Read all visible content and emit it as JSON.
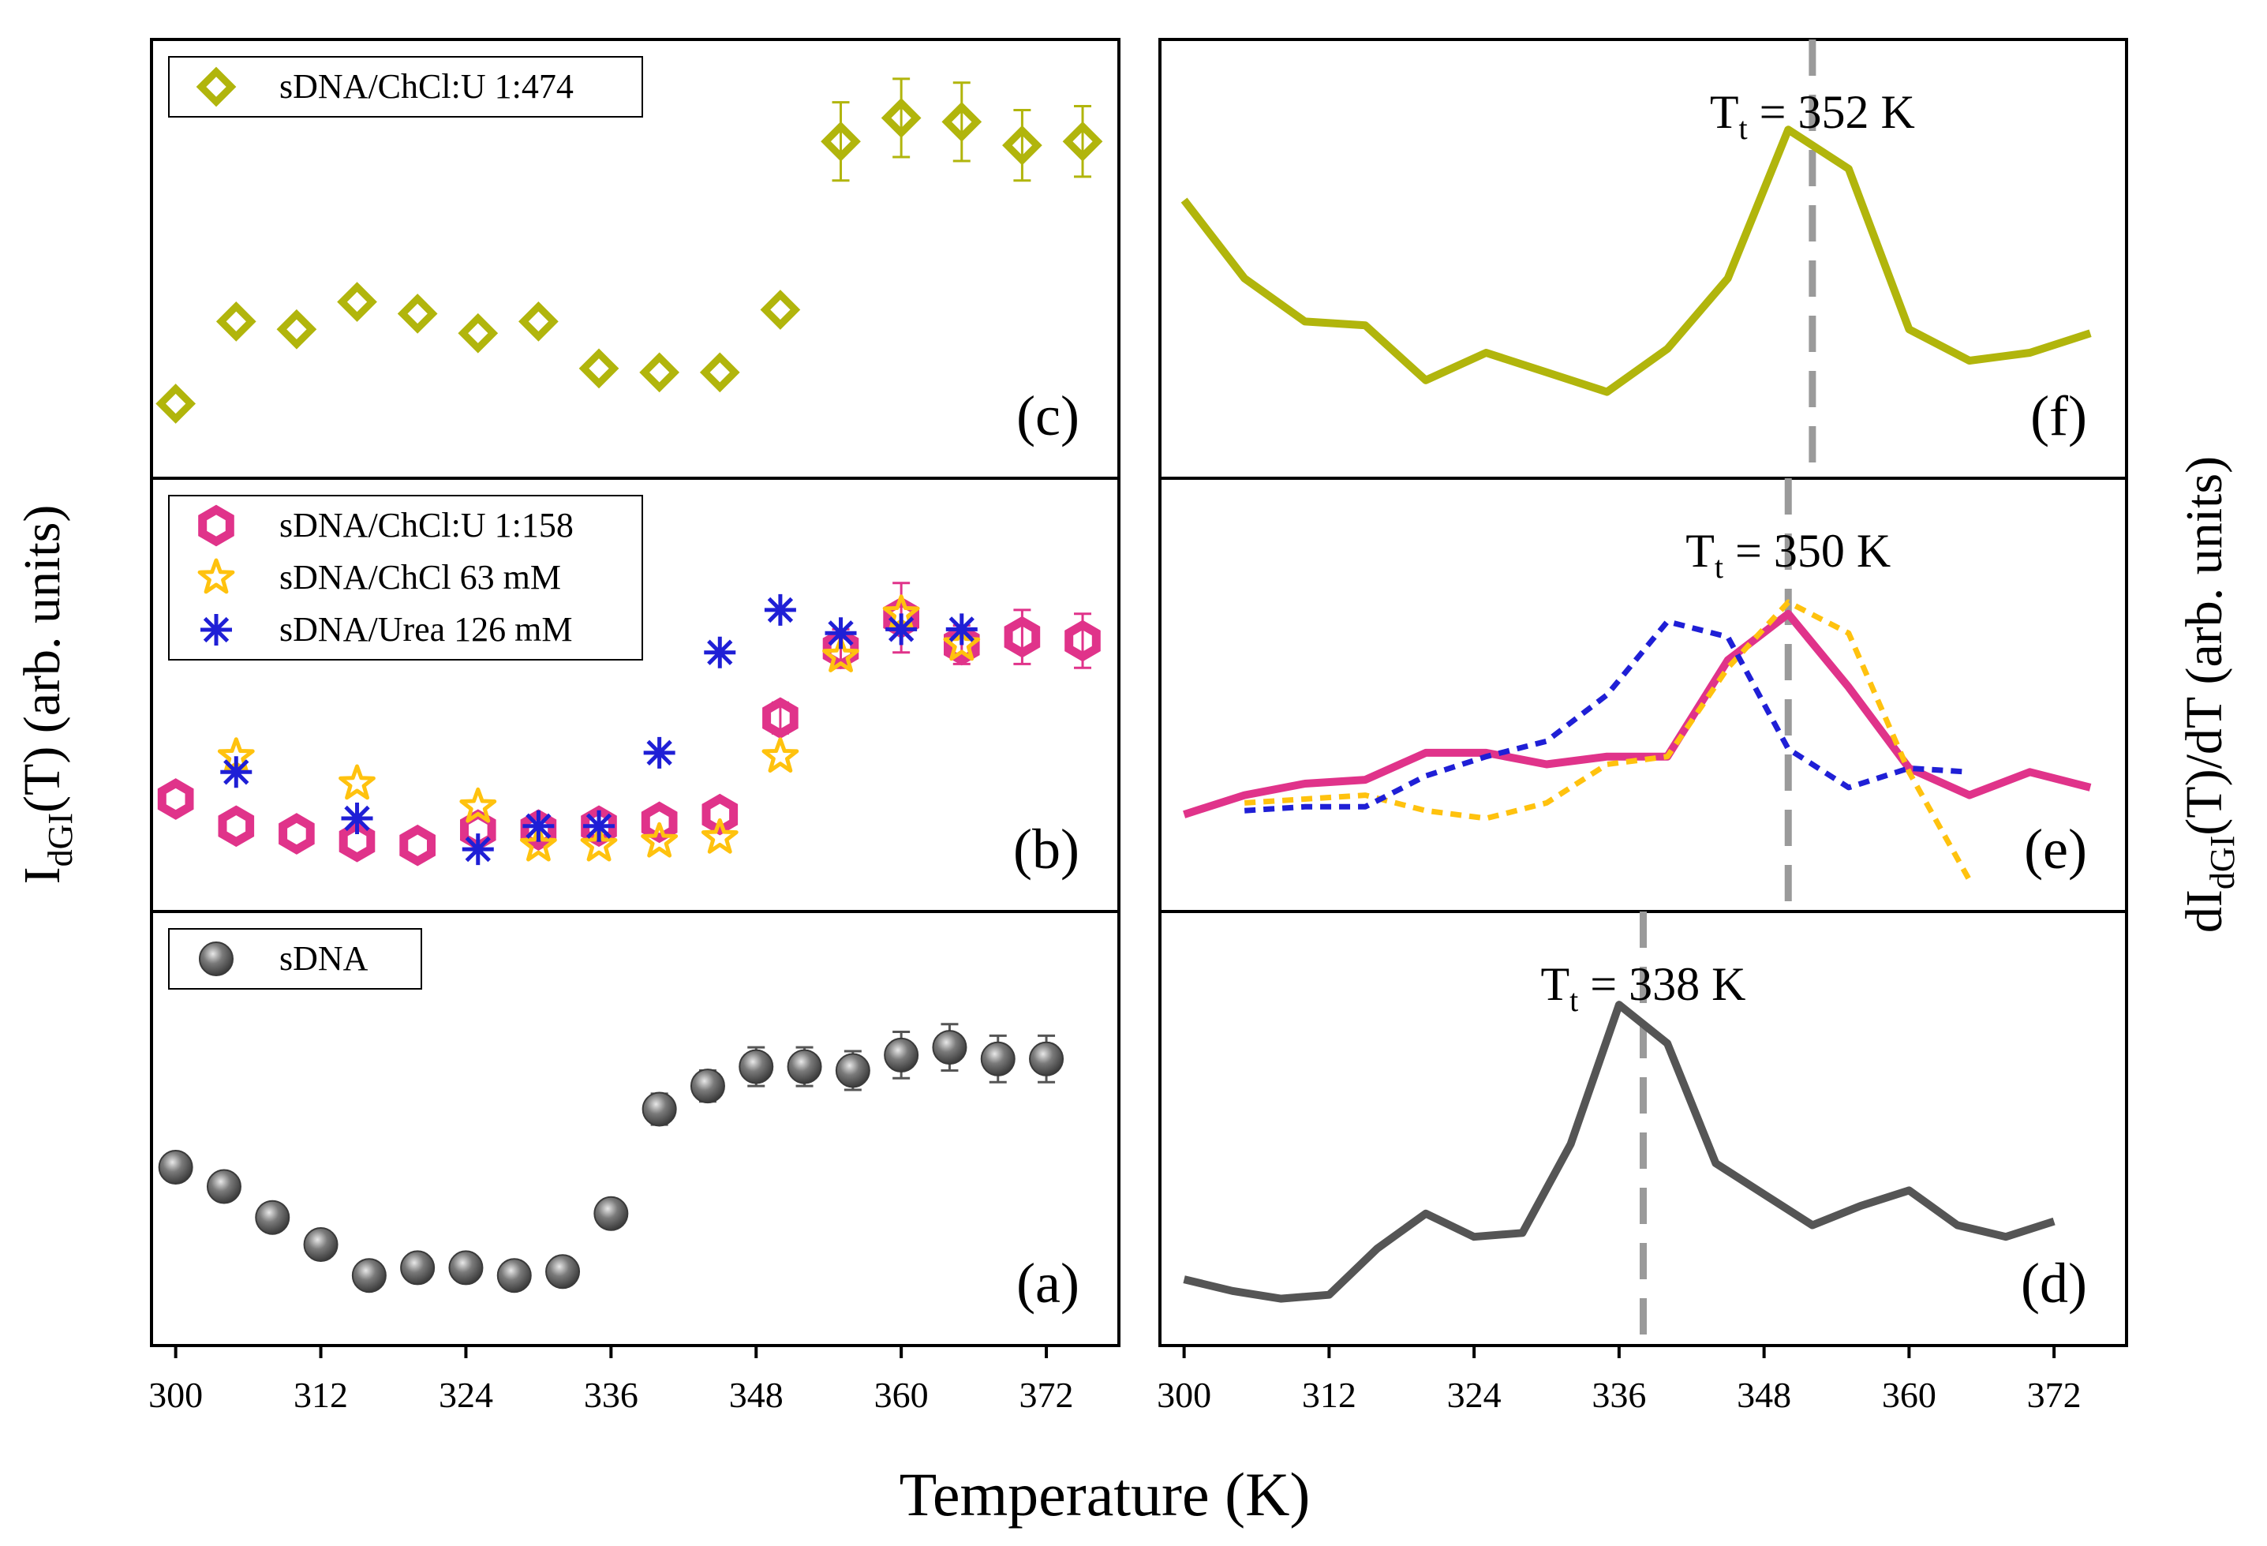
{
  "figure": {
    "x_axis_label": "Temperature (K)",
    "y_left_label": "I",
    "y_left_sub": "dGI",
    "y_left_rest": "(T) (arb. units)",
    "y_right_label": "dI",
    "y_right_sub": "dGI",
    "y_right_rest": "(T)/dT (arb. units)",
    "x_ticks": [
      300,
      312,
      324,
      336,
      348,
      360,
      372
    ],
    "xlim": [
      298,
      378
    ]
  },
  "chart_data": [
    {
      "panel": "(c)",
      "type": "scatter",
      "ylim": [
        0,
        1
      ],
      "legend": [
        {
          "name": "sDNA/ChCl:U 1:474",
          "marker": "diamond",
          "color": "#b1b50c"
        }
      ],
      "series": [
        {
          "name": "sDNA/ChCl:U 1:474",
          "marker": "diamond",
          "color": "#b1b50c",
          "x": [
            300,
            305,
            310,
            315,
            320,
            325,
            330,
            335,
            340,
            345,
            350,
            355,
            360,
            365,
            370,
            375
          ],
          "y": [
            0.13,
            0.34,
            0.32,
            0.39,
            0.36,
            0.31,
            0.34,
            0.22,
            0.21,
            0.21,
            0.37,
            0.8,
            0.86,
            0.85,
            0.79,
            0.8
          ],
          "err": [
            0,
            0,
            0,
            0,
            0,
            0,
            0,
            0,
            0,
            0,
            0,
            0.1,
            0.1,
            0.1,
            0.09,
            0.09
          ]
        }
      ]
    },
    {
      "panel": "(b)",
      "type": "scatter",
      "ylim": [
        0,
        1
      ],
      "legend": [
        {
          "name": "sDNA/ChCl:U 1:158",
          "marker": "hexagon",
          "color": "#e0338a"
        },
        {
          "name": "sDNA/ChCl 63 mM",
          "marker": "star",
          "color": "#ffc20e"
        },
        {
          "name": "sDNA/Urea 126 mM",
          "marker": "asterisk",
          "color": "#1f1fd6"
        }
      ],
      "series": [
        {
          "name": "sDNA/ChCl:U 1:158",
          "marker": "hexagon",
          "color": "#e0338a",
          "x": [
            300,
            305,
            310,
            315,
            320,
            325,
            330,
            335,
            340,
            345,
            350,
            355,
            360,
            365,
            370,
            375
          ],
          "y": [
            0.23,
            0.16,
            0.14,
            0.12,
            0.11,
            0.15,
            0.15,
            0.16,
            0.17,
            0.19,
            0.44,
            0.62,
            0.7,
            0.63,
            0.65,
            0.64
          ],
          "err": [
            0,
            0,
            0,
            0,
            0,
            0,
            0,
            0,
            0,
            0,
            0.04,
            0.05,
            0.09,
            0.05,
            0.07,
            0.07
          ]
        },
        {
          "name": "sDNA/ChCl 63 mM",
          "marker": "star",
          "color": "#ffc20e",
          "x": [
            305,
            315,
            325,
            330,
            335,
            340,
            345,
            350,
            355,
            360,
            365
          ],
          "y": [
            0.34,
            0.27,
            0.21,
            0.11,
            0.11,
            0.12,
            0.13,
            0.34,
            0.6,
            0.71,
            0.63
          ]
        },
        {
          "name": "sDNA/Urea 126 mM",
          "marker": "asterisk",
          "color": "#1f1fd6",
          "x": [
            305,
            315,
            325,
            330,
            335,
            340,
            345,
            350,
            355,
            360,
            365
          ],
          "y": [
            0.3,
            0.18,
            0.1,
            0.16,
            0.16,
            0.35,
            0.61,
            0.72,
            0.66,
            0.67,
            0.67
          ]
        }
      ]
    },
    {
      "panel": "(a)",
      "type": "scatter",
      "ylim": [
        0,
        1
      ],
      "legend": [
        {
          "name": "sDNA",
          "marker": "sphere",
          "color": "#555555"
        }
      ],
      "series": [
        {
          "name": "sDNA",
          "marker": "sphere",
          "color": "#555555",
          "x": [
            300,
            304,
            308,
            312,
            316,
            320,
            324,
            328,
            332,
            336,
            340,
            344,
            348,
            352,
            356,
            360,
            364,
            368,
            372
          ],
          "y": [
            0.4,
            0.35,
            0.27,
            0.2,
            0.12,
            0.14,
            0.14,
            0.12,
            0.13,
            0.28,
            0.55,
            0.61,
            0.66,
            0.66,
            0.65,
            0.69,
            0.71,
            0.68,
            0.68
          ],
          "err": [
            0,
            0,
            0,
            0,
            0,
            0,
            0,
            0,
            0,
            0,
            0.04,
            0.04,
            0.05,
            0.05,
            0.05,
            0.06,
            0.06,
            0.06,
            0.06
          ]
        }
      ]
    },
    {
      "panel": "(f)",
      "type": "line",
      "ylim": [
        0,
        1
      ],
      "annotation": {
        "text": "T",
        "sub": "t",
        "rest": " = 352 K",
        "x": 352
      },
      "series": [
        {
          "name": "sDNA/ChCl:U 1:474",
          "color": "#b1b50c",
          "dash": "none",
          "x": [
            300,
            305,
            310,
            315,
            320,
            325,
            330,
            335,
            340,
            345,
            350,
            355,
            360,
            365,
            370,
            375
          ],
          "y": [
            0.65,
            0.45,
            0.34,
            0.33,
            0.19,
            0.26,
            0.21,
            0.16,
            0.27,
            0.45,
            0.83,
            0.73,
            0.32,
            0.24,
            0.26,
            0.31
          ]
        }
      ]
    },
    {
      "panel": "(e)",
      "type": "line",
      "ylim": [
        0,
        1
      ],
      "annotation": {
        "text": "T",
        "sub": "t",
        "rest": " = 350 K",
        "x": 350
      },
      "series": [
        {
          "name": "sDNA/ChCl:U 1:158",
          "color": "#e0338a",
          "dash": "none",
          "x": [
            300,
            305,
            310,
            315,
            320,
            325,
            330,
            335,
            340,
            345,
            350,
            355,
            360,
            365,
            370,
            375
          ],
          "y": [
            0.19,
            0.24,
            0.27,
            0.28,
            0.35,
            0.35,
            0.32,
            0.34,
            0.34,
            0.59,
            0.71,
            0.52,
            0.31,
            0.24,
            0.3,
            0.26
          ]
        },
        {
          "name": "sDNA/ChCl 63 mM",
          "color": "#ffc20e",
          "dash": "14,10",
          "x": [
            305,
            310,
            315,
            320,
            325,
            330,
            335,
            340,
            345,
            350,
            355,
            360,
            365
          ],
          "y": [
            0.22,
            0.23,
            0.24,
            0.2,
            0.18,
            0.22,
            0.32,
            0.34,
            0.57,
            0.74,
            0.66,
            0.3,
            0.02
          ]
        },
        {
          "name": "sDNA/Urea 126 mM",
          "color": "#1f1fd6",
          "dash": "14,10",
          "x": [
            305,
            310,
            315,
            320,
            325,
            330,
            335,
            340,
            345,
            350,
            355,
            360,
            365
          ],
          "y": [
            0.2,
            0.21,
            0.21,
            0.29,
            0.34,
            0.38,
            0.5,
            0.69,
            0.65,
            0.36,
            0.26,
            0.31,
            0.3
          ]
        }
      ]
    },
    {
      "panel": "(d)",
      "type": "line",
      "ylim": [
        0,
        1
      ],
      "annotation": {
        "text": "T",
        "sub": "t",
        "rest": " = 338 K",
        "x": 338
      },
      "series": [
        {
          "name": "sDNA",
          "color": "#555555",
          "dash": "none",
          "x": [
            300,
            304,
            308,
            312,
            316,
            320,
            324,
            328,
            332,
            336,
            340,
            344,
            348,
            352,
            356,
            360,
            364,
            368,
            372
          ],
          "y": [
            0.11,
            0.08,
            0.06,
            0.07,
            0.19,
            0.28,
            0.22,
            0.23,
            0.46,
            0.82,
            0.72,
            0.41,
            0.33,
            0.25,
            0.3,
            0.34,
            0.25,
            0.22,
            0.26
          ]
        }
      ]
    }
  ]
}
